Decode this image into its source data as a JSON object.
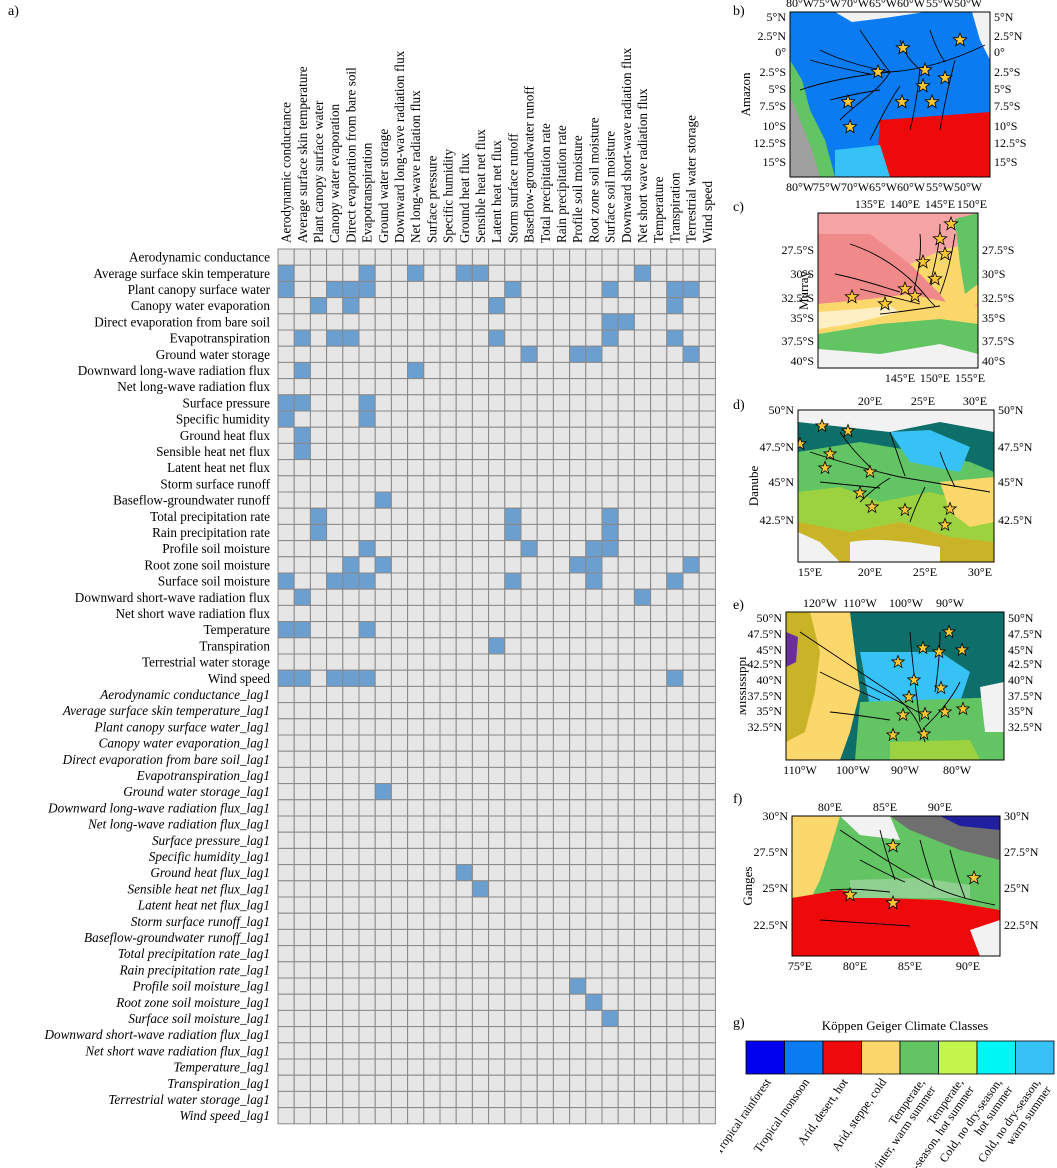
{
  "panels": {
    "a": "a)",
    "b": "b)",
    "c": "c)",
    "d": "d)",
    "e": "e)",
    "f": "f)",
    "g": "g)"
  },
  "variables": [
    "Aerodynamic conductance",
    "Average surface skin temperature",
    "Plant canopy surface water",
    "Canopy water evaporation",
    "Direct evaporation from bare soil",
    "Evapotranspiration",
    "Ground water storage",
    "Downward long-wave radiation flux",
    "Net long-wave radiation flux",
    "Surface pressure",
    "Specific humidity",
    "Ground heat flux",
    "Sensible heat net flux",
    "Latent heat net flux",
    "Storm surface runoff",
    "Baseflow-groundwater runoff",
    "Total precipitation rate",
    "Rain precipitation rate",
    "Profile soil moisture",
    "Root zone soil moisture",
    "Surface soil moisture",
    "Downward short-wave radiation flux",
    "Net short wave radiation flux",
    "Temperature",
    "Transpiration",
    "Terrestrial water storage",
    "Wind speed"
  ],
  "rows": [
    "Aerodynamic conductance",
    "Average surface skin temperature",
    "Plant canopy surface water",
    "Canopy water evaporation",
    "Direct evaporation from bare soil",
    "Evapotranspiration",
    "Ground water storage",
    "Downward long-wave radiation flux",
    "Net long-wave radiation flux",
    "Surface pressure",
    "Specific humidity",
    "Ground heat flux",
    "Sensible heat net flux",
    "Latent heat net flux",
    "Storm surface runoff",
    "Baseflow-groundwater runoff",
    "Total precipitation rate",
    "Rain precipitation rate",
    "Profile soil moisture",
    "Root zone soil moisture",
    "Surface soil moisture",
    "Downward short-wave radiation flux",
    "Net short wave radiation flux",
    "Temperature",
    "Transpiration",
    "Terrestrial water storage",
    "Wind speed",
    "Aerodynamic conductance_lag1",
    "Average surface skin temperature_lag1",
    "Plant canopy surface water_lag1",
    "Canopy water evaporation_lag1",
    "Direct evaporation from bare soil_lag1",
    "Evapotranspiration_lag1",
    "Ground water storage_lag1",
    "Downward long-wave radiation flux_lag1",
    "Net long-wave radiation flux_lag1",
    "Surface pressure_lag1",
    "Specific humidity_lag1",
    "Ground heat flux_lag1",
    "Sensible heat net flux_lag1",
    "Latent heat net flux_lag1",
    "Storm surface runoff_lag1",
    "Baseflow-groundwater runoff_lag1",
    "Total precipitation rate_lag1",
    "Rain precipitation rate_lag1",
    "Profile soil moisture_lag1",
    "Root zone soil moisture_lag1",
    "Surface soil moisture_lag1",
    "Downward short-wave radiation flux_lag1",
    "Net short wave radiation flux_lag1",
    "Temperature_lag1",
    "Transpiration_lag1",
    "Terrestrial water storage_lag1",
    "Wind speed_lag1"
  ],
  "links": [
    [
      1,
      0
    ],
    [
      1,
      5
    ],
    [
      1,
      8
    ],
    [
      1,
      11
    ],
    [
      1,
      12
    ],
    [
      1,
      22
    ],
    [
      2,
      0
    ],
    [
      2,
      3
    ],
    [
      2,
      4
    ],
    [
      2,
      5
    ],
    [
      2,
      14
    ],
    [
      2,
      20
    ],
    [
      2,
      24
    ],
    [
      2,
      25
    ],
    [
      3,
      2
    ],
    [
      3,
      4
    ],
    [
      3,
      13
    ],
    [
      3,
      24
    ],
    [
      4,
      20
    ],
    [
      4,
      21
    ],
    [
      5,
      1
    ],
    [
      5,
      3
    ],
    [
      5,
      4
    ],
    [
      5,
      13
    ],
    [
      5,
      20
    ],
    [
      5,
      24
    ],
    [
      6,
      15
    ],
    [
      6,
      18
    ],
    [
      6,
      19
    ],
    [
      6,
      25
    ],
    [
      7,
      1
    ],
    [
      7,
      8
    ],
    [
      9,
      0
    ],
    [
      9,
      1
    ],
    [
      9,
      5
    ],
    [
      10,
      0
    ],
    [
      10,
      5
    ],
    [
      11,
      1
    ],
    [
      12,
      1
    ],
    [
      15,
      6
    ],
    [
      16,
      2
    ],
    [
      16,
      14
    ],
    [
      16,
      20
    ],
    [
      17,
      2
    ],
    [
      17,
      14
    ],
    [
      17,
      20
    ],
    [
      18,
      5
    ],
    [
      18,
      15
    ],
    [
      18,
      19
    ],
    [
      18,
      20
    ],
    [
      19,
      4
    ],
    [
      19,
      6
    ],
    [
      19,
      18
    ],
    [
      19,
      19
    ],
    [
      19,
      25
    ],
    [
      20,
      0
    ],
    [
      20,
      3
    ],
    [
      20,
      4
    ],
    [
      20,
      5
    ],
    [
      20,
      14
    ],
    [
      20,
      19
    ],
    [
      20,
      24
    ],
    [
      21,
      1
    ],
    [
      21,
      22
    ],
    [
      23,
      0
    ],
    [
      23,
      1
    ],
    [
      23,
      5
    ],
    [
      24,
      13
    ],
    [
      26,
      0
    ],
    [
      26,
      1
    ],
    [
      26,
      3
    ],
    [
      26,
      4
    ],
    [
      26,
      5
    ],
    [
      26,
      24
    ],
    [
      33,
      6
    ],
    [
      38,
      11
    ],
    [
      39,
      12
    ],
    [
      45,
      18
    ],
    [
      46,
      19
    ],
    [
      47,
      20
    ]
  ],
  "colors": {
    "cell": "#e6e6e6",
    "active": "#6b9fd0",
    "grid": "#888888"
  },
  "maps": {
    "amazon": {
      "name": "Amazon",
      "top": [
        "80°W",
        "75°W",
        "70°W",
        "65°W",
        "60°W",
        "55°W",
        "50°W"
      ],
      "bottom": [
        "80°W",
        "75°W",
        "70°W",
        "65°W",
        "60°W",
        "55°W",
        "50°W"
      ],
      "lat": [
        "5°N",
        "2.5°N",
        "0°",
        "2.5°S",
        "5°S",
        "7.5°S",
        "10°S",
        "12.5°S",
        "15°S"
      ]
    },
    "murray": {
      "name": "Murray",
      "top": [
        "135°E",
        "140°E",
        "145°E",
        "150°E"
      ],
      "bottom": [
        "145°E",
        "150°E",
        "155°E"
      ],
      "lat": [
        "27.5°S",
        "30°S",
        "32.5°S",
        "35°S",
        "37.5°S",
        "40°S"
      ]
    },
    "danube": {
      "name": "Danube",
      "top": [
        "20°E",
        "25°E",
        "30°E"
      ],
      "bottom": [
        "15°E",
        "20°E",
        "25°E",
        "30°E"
      ],
      "lat": [
        "50°N",
        "47.5°N",
        "45°N",
        "42.5°N"
      ]
    },
    "mississippi": {
      "name": "Mississippi",
      "top": [
        "120°W",
        "110°W",
        "100°W",
        "90°W"
      ],
      "bottom": [
        "110°W",
        "100°W",
        "90°W",
        "80°W"
      ],
      "lat": [
        "50°N",
        "47.5°N",
        "45°N",
        "42.5°N",
        "40°N",
        "37.5°N",
        "35°N",
        "32.5°N"
      ]
    },
    "ganges": {
      "name": "Ganges",
      "top": [
        "80°E",
        "85°E",
        "90°E"
      ],
      "bottom": [
        "75°E",
        "80°E",
        "85°E",
        "90°E"
      ],
      "lat": [
        "30°N",
        "27.5°N",
        "25°N",
        "22.5°N"
      ]
    }
  },
  "legend": {
    "title": "Köppen Geiger Climate Classes",
    "classes": [
      {
        "label": "Tropical rainforest",
        "color": "#0000ee"
      },
      {
        "label": "Tropical monsoon",
        "color": "#0b7bf2"
      },
      {
        "label": "Arid, desert, hot",
        "color": "#ee0a0a"
      },
      {
        "label": "Arid, steppe, cold",
        "color": "#fcd86c"
      },
      {
        "label": "Temperate, dry winter, warm summer",
        "color": "#63c463"
      },
      {
        "label": "Temperate, no dry-season, hot summer",
        "color": "#c4f54a"
      },
      {
        "label": "Cold, no dry-season, hot summer",
        "color": "#00f5f5"
      },
      {
        "label": "Cold, no dry-season, warm summer",
        "color": "#37c2f5"
      }
    ]
  }
}
